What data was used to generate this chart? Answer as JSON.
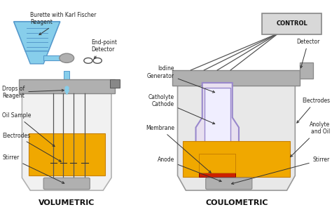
{
  "bg_color": "#ffffff",
  "vol_label": "VOLUMETRIC",
  "coul_label": "COULOMETRIC",
  "control_label": "CONTROL",
  "silver": "#b0b0b0",
  "dark_silver": "#888888",
  "light_gray": "#d8d8d8",
  "gold": "#f0a800",
  "gold_dark": "#c88000",
  "blue_light": "#87ceeb",
  "blue_med": "#5599cc",
  "white": "#ffffff",
  "off_white": "#f0f0f0",
  "purple_light": "#9988cc",
  "purple_fill": "#e8e0f0",
  "red_c": "#cc2200",
  "black": "#111111",
  "text_col": "#222222",
  "label_col": "#111111"
}
